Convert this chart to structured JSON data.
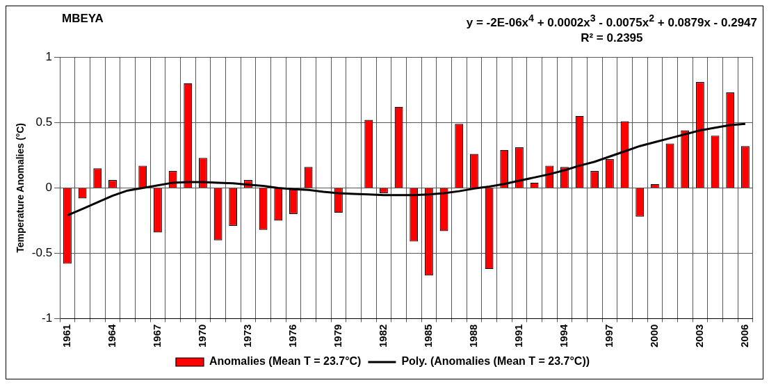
{
  "chart_data": {
    "type": "bar",
    "title": "MBEYA",
    "ylabel": "Temperature Anomalies (°C)",
    "annotations": [
      "y = -2E-06x$^{4}$ + 0.0002x$^{3}$ - 0.0075x$^{2}$ + 0.0879x - 0.2947",
      "R² = 0.2395"
    ],
    "categories": [
      "1961",
      null,
      null,
      "1964",
      null,
      null,
      "1967",
      null,
      null,
      "1970",
      null,
      null,
      "1973",
      null,
      null,
      "1976",
      null,
      null,
      "1979",
      null,
      null,
      "1982",
      null,
      null,
      "1985",
      null,
      null,
      "1988",
      null,
      null,
      "1991",
      null,
      null,
      "1994",
      null,
      null,
      "1997",
      null,
      null,
      "2000",
      null,
      null,
      "2003",
      null,
      null,
      "2006"
    ],
    "series": [
      {
        "name": "Anomalies (Mean T = 23.7°C)",
        "color": "#ff0000",
        "values": [
          -0.58,
          -0.08,
          0.15,
          0.06,
          0,
          0.17,
          -0.34,
          0.13,
          0.8,
          0.23,
          -0.4,
          -0.29,
          0.06,
          -0.32,
          -0.25,
          -0.2,
          0.16,
          0,
          -0.19,
          0,
          0.52,
          -0.04,
          0.62,
          -0.41,
          -0.67,
          -0.33,
          0.49,
          0.26,
          -0.62,
          0.29,
          0.31,
          0.04,
          0.17,
          0.16,
          0.55,
          0.13,
          0.22,
          0.51,
          -0.22,
          0.03,
          0.34,
          0.44,
          0.81,
          0.4,
          0.73,
          0.32
        ]
      },
      {
        "name": "Poly. (Anomalies (Mean T = 23.7°C))",
        "type": "line",
        "color": "#000000",
        "values": [
          -0.21,
          -0.16,
          -0.11,
          -0.06,
          -0.02,
          0,
          0.02,
          0.04,
          0.045,
          0.045,
          0.04,
          0.035,
          0.025,
          0.015,
          0,
          -0.01,
          -0.015,
          -0.03,
          -0.04,
          -0.045,
          -0.05,
          -0.055,
          -0.055,
          -0.055,
          -0.05,
          -0.04,
          -0.025,
          -0.005,
          0.01,
          0.03,
          0.055,
          0.08,
          0.105,
          0.135,
          0.17,
          0.2,
          0.24,
          0.28,
          0.32,
          0.35,
          0.38,
          0.41,
          0.44,
          0.46,
          0.48,
          0.49
        ]
      }
    ],
    "ylim": [
      -1,
      1
    ],
    "yticks": [
      -1,
      -0.5,
      0,
      0.5,
      1
    ],
    "grid": true,
    "legend": "bottom",
    "marker": "none",
    "line_style": "solid"
  }
}
